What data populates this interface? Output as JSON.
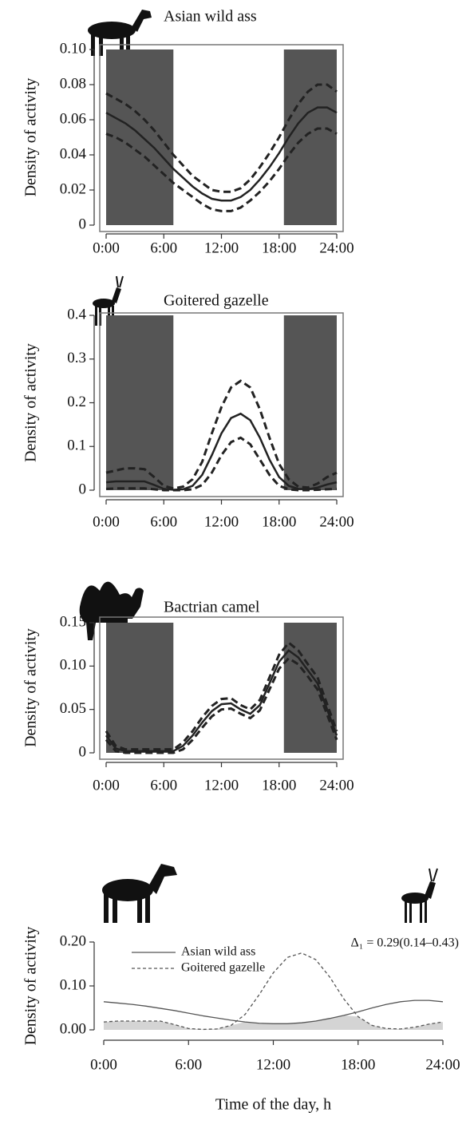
{
  "chart_data": [
    {
      "type": "line",
      "title": "Asian wild ass",
      "ylabel": "Density of activity",
      "x": [
        0,
        1,
        2,
        3,
        4,
        5,
        6,
        7,
        8,
        9,
        10,
        11,
        12,
        13,
        14,
        15,
        16,
        17,
        18,
        19,
        20,
        21,
        22,
        23,
        24
      ],
      "series": [
        {
          "color": "#222222",
          "line_style": "solid",
          "values": [
            0.064,
            0.061,
            0.058,
            0.054,
            0.049,
            0.044,
            0.038,
            0.032,
            0.027,
            0.022,
            0.018,
            0.015,
            0.014,
            0.014,
            0.016,
            0.02,
            0.026,
            0.033,
            0.041,
            0.05,
            0.058,
            0.064,
            0.067,
            0.067,
            0.064
          ]
        },
        {
          "color": "#222222",
          "line_style": "dashed",
          "values": [
            0.075,
            0.072,
            0.069,
            0.065,
            0.06,
            0.054,
            0.047,
            0.04,
            0.034,
            0.028,
            0.024,
            0.02,
            0.019,
            0.019,
            0.021,
            0.026,
            0.033,
            0.041,
            0.05,
            0.06,
            0.069,
            0.076,
            0.08,
            0.08,
            0.076
          ]
        },
        {
          "color": "#222222",
          "line_style": "dashed",
          "values": [
            0.052,
            0.05,
            0.047,
            0.043,
            0.039,
            0.034,
            0.029,
            0.024,
            0.02,
            0.016,
            0.012,
            0.009,
            0.008,
            0.008,
            0.01,
            0.014,
            0.019,
            0.025,
            0.032,
            0.04,
            0.047,
            0.052,
            0.055,
            0.055,
            0.052
          ]
        }
      ],
      "night_shading": [
        [
          0,
          7
        ],
        [
          18.5,
          24
        ]
      ],
      "night_color": "#555555",
      "xlim": [
        0,
        24
      ],
      "xticks": [
        {
          "value": 0,
          "label": "0:00"
        },
        {
          "value": 6,
          "label": "6:00"
        },
        {
          "value": 12,
          "label": "12:00"
        },
        {
          "value": 18,
          "label": "18:00"
        },
        {
          "value": 24,
          "label": "24:00"
        }
      ],
      "ylim": [
        0,
        0.1
      ],
      "yticks": [
        0,
        0.02,
        0.04,
        0.06,
        0.08,
        {
          "value": 0.1,
          "label": "0.10"
        }
      ],
      "frame": true
    },
    {
      "type": "line",
      "title": "Goitered gazelle",
      "ylabel": "Density of activity",
      "x": [
        0,
        1,
        2,
        3,
        4,
        5,
        6,
        7,
        8,
        9,
        10,
        11,
        12,
        13,
        14,
        15,
        16,
        17,
        18,
        19,
        20,
        21,
        22,
        23,
        24
      ],
      "series": [
        {
          "color": "#222222",
          "line_style": "solid",
          "values": [
            0.018,
            0.02,
            0.02,
            0.02,
            0.02,
            0.012,
            0.003,
            0.001,
            0.002,
            0.01,
            0.035,
            0.08,
            0.13,
            0.165,
            0.175,
            0.16,
            0.12,
            0.07,
            0.03,
            0.01,
            0.003,
            0.002,
            0.006,
            0.013,
            0.018
          ]
        },
        {
          "color": "#222222",
          "line_style": "dashed",
          "values": [
            0.04,
            0.045,
            0.05,
            0.05,
            0.048,
            0.03,
            0.01,
            0.004,
            0.008,
            0.025,
            0.065,
            0.13,
            0.19,
            0.235,
            0.25,
            0.235,
            0.185,
            0.12,
            0.06,
            0.025,
            0.008,
            0.006,
            0.015,
            0.03,
            0.04
          ]
        },
        {
          "color": "#222222",
          "line_style": "dashed",
          "values": [
            0.003,
            0.004,
            0.004,
            0.004,
            0.004,
            0.002,
            0,
            0,
            0,
            0.002,
            0.012,
            0.04,
            0.08,
            0.11,
            0.12,
            0.105,
            0.07,
            0.035,
            0.01,
            0.002,
            0,
            0,
            0.001,
            0.002,
            0.003
          ]
        }
      ],
      "night_shading": [
        [
          0,
          7
        ],
        [
          18.5,
          24
        ]
      ],
      "night_color": "#555555",
      "xlim": [
        0,
        24
      ],
      "xticks": [
        {
          "value": 0,
          "label": "0:00"
        },
        {
          "value": 6,
          "label": "6:00"
        },
        {
          "value": 12,
          "label": "12:00"
        },
        {
          "value": 18,
          "label": "18:00"
        },
        {
          "value": 24,
          "label": "24:00"
        }
      ],
      "ylim": [
        0,
        0.4
      ],
      "yticks": [
        0,
        0.1,
        0.2,
        0.3,
        0.4
      ],
      "frame": true
    },
    {
      "type": "line",
      "title": "Bactrian camel",
      "ylabel": "Density of activity",
      "x": [
        0,
        1,
        2,
        3,
        4,
        5,
        6,
        7,
        8,
        9,
        10,
        11,
        12,
        13,
        14,
        15,
        16,
        17,
        18,
        19,
        20,
        21,
        22,
        23,
        24
      ],
      "series": [
        {
          "color": "#222222",
          "line_style": "solid",
          "values": [
            0.02,
            0.005,
            0.002,
            0.002,
            0.002,
            0.002,
            0.002,
            0.002,
            0.008,
            0.02,
            0.035,
            0.048,
            0.056,
            0.057,
            0.05,
            0.045,
            0.055,
            0.08,
            0.105,
            0.118,
            0.11,
            0.095,
            0.08,
            0.05,
            0.02
          ]
        },
        {
          "color": "#222222",
          "line_style": "dashed",
          "values": [
            0.025,
            0.008,
            0.004,
            0.004,
            0.004,
            0.004,
            0.004,
            0.004,
            0.012,
            0.025,
            0.041,
            0.054,
            0.062,
            0.063,
            0.055,
            0.05,
            0.061,
            0.087,
            0.113,
            0.127,
            0.118,
            0.102,
            0.087,
            0.056,
            0.025
          ]
        },
        {
          "color": "#222222",
          "line_style": "dashed",
          "values": [
            0.015,
            0.002,
            0,
            0,
            0,
            0,
            0,
            0,
            0.004,
            0.015,
            0.029,
            0.042,
            0.05,
            0.051,
            0.045,
            0.04,
            0.049,
            0.073,
            0.097,
            0.109,
            0.102,
            0.088,
            0.073,
            0.044,
            0.015
          ]
        }
      ],
      "night_shading": [
        [
          0,
          7
        ],
        [
          18.5,
          24
        ]
      ],
      "night_color": "#555555",
      "xlim": [
        0,
        24
      ],
      "xticks": [
        {
          "value": 0,
          "label": "0:00"
        },
        {
          "value": 6,
          "label": "6:00"
        },
        {
          "value": 12,
          "label": "12:00"
        },
        {
          "value": 18,
          "label": "18:00"
        },
        {
          "value": 24,
          "label": "24:00"
        }
      ],
      "ylim": [
        0,
        0.15
      ],
      "yticks": [
        0,
        0.05,
        {
          "value": 0.1,
          "label": "0.10"
        },
        0.15
      ],
      "frame": true
    },
    {
      "type": "line",
      "ylabel": "Density of activity",
      "xlabel": "Time of the day, h",
      "annotation": "Δ₁ = 0.29(0.14–0.43)",
      "x": [
        0,
        1,
        2,
        3,
        4,
        5,
        6,
        7,
        8,
        9,
        10,
        11,
        12,
        13,
        14,
        15,
        16,
        17,
        18,
        19,
        20,
        21,
        22,
        23,
        24
      ],
      "series": [
        {
          "name": "Asian wild ass",
          "color": "#555555",
          "line_style": "solid",
          "values": [
            0.064,
            0.061,
            0.058,
            0.054,
            0.049,
            0.044,
            0.038,
            0.032,
            0.027,
            0.022,
            0.018,
            0.015,
            0.014,
            0.014,
            0.016,
            0.02,
            0.026,
            0.033,
            0.041,
            0.05,
            0.058,
            0.064,
            0.067,
            0.067,
            0.064
          ]
        },
        {
          "name": "Goitered gazelle",
          "color": "#555555",
          "line_style": "dashed",
          "values": [
            0.018,
            0.02,
            0.02,
            0.02,
            0.02,
            0.012,
            0.003,
            0.001,
            0.002,
            0.01,
            0.035,
            0.08,
            0.13,
            0.165,
            0.175,
            0.16,
            0.12,
            0.07,
            0.03,
            0.01,
            0.003,
            0.002,
            0.006,
            0.013,
            0.018
          ]
        }
      ],
      "overlap_fill": "#d4d4d4",
      "legend": "upper left",
      "xlim": [
        0,
        24
      ],
      "xticks": [
        {
          "value": 0,
          "label": "0:00"
        },
        {
          "value": 6,
          "label": "6:00"
        },
        {
          "value": 12,
          "label": "12:00"
        },
        {
          "value": 18,
          "label": "18:00"
        },
        {
          "value": 24,
          "label": "24:00"
        }
      ],
      "ylim": [
        0,
        0.2
      ],
      "yticks": [
        {
          "value": 0,
          "label": "0.00"
        },
        {
          "value": 0.1,
          "label": "0.10"
        },
        {
          "value": 0.2,
          "label": "0.20"
        }
      ],
      "frame": false
    }
  ]
}
